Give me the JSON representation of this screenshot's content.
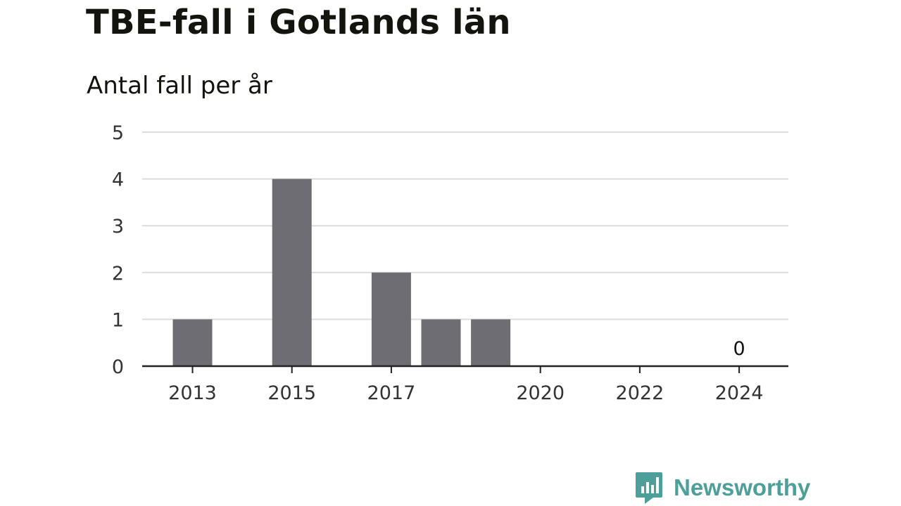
{
  "header": {
    "title": "TBE-fall i Gotlands län",
    "subtitle": "Antal fall per år"
  },
  "brand": {
    "name": "Newsworthy",
    "color": "#4d9f9a"
  },
  "chart_data": {
    "type": "bar",
    "categories": [
      "2013",
      "2014",
      "2015",
      "2016",
      "2017",
      "2018",
      "2019",
      "2020",
      "2021",
      "2022",
      "2023",
      "2024"
    ],
    "values": [
      1,
      0,
      4,
      0,
      2,
      1,
      1,
      0,
      0,
      0,
      0,
      0
    ],
    "x_tick_labels": [
      "2013",
      "2015",
      "2017",
      "2020",
      "2022",
      "2024"
    ],
    "y_ticks": [
      0,
      1,
      2,
      3,
      4,
      5
    ],
    "ylim": [
      0,
      5
    ],
    "data_labels": [
      {
        "category": "2024",
        "text": "0"
      }
    ],
    "title": "TBE-fall i Gotlands län",
    "subtitle": "Antal fall per år",
    "xlabel": "",
    "ylabel": "",
    "grid": true,
    "bar_color": "#6e6d73"
  }
}
